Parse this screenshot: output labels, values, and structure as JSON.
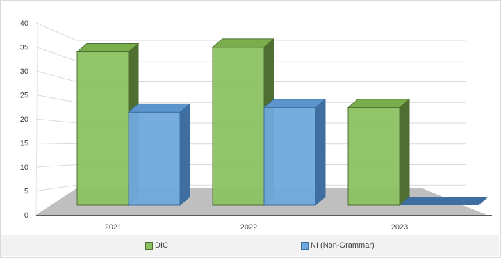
{
  "chart_data": {
    "type": "bar",
    "categories": [
      "2021",
      "2022",
      "2023"
    ],
    "series": [
      {
        "name": "DIC",
        "values": [
          33,
          34,
          21
        ],
        "color": "#8cc262",
        "side_color": "#4e6e32",
        "top_color": "#7aae4d"
      },
      {
        "name": "NI (Non-Grammar)",
        "values": [
          20,
          21,
          0
        ],
        "color": "#6fa8dc",
        "side_color": "#3f6fa0",
        "top_color": "#5b95cc"
      }
    ],
    "ylim": [
      0,
      40
    ],
    "yticks": [
      0,
      5,
      10,
      15,
      20,
      25,
      30,
      35,
      40
    ],
    "grid": true,
    "legend_position": "bottom",
    "style": "3d-clustered-column"
  }
}
